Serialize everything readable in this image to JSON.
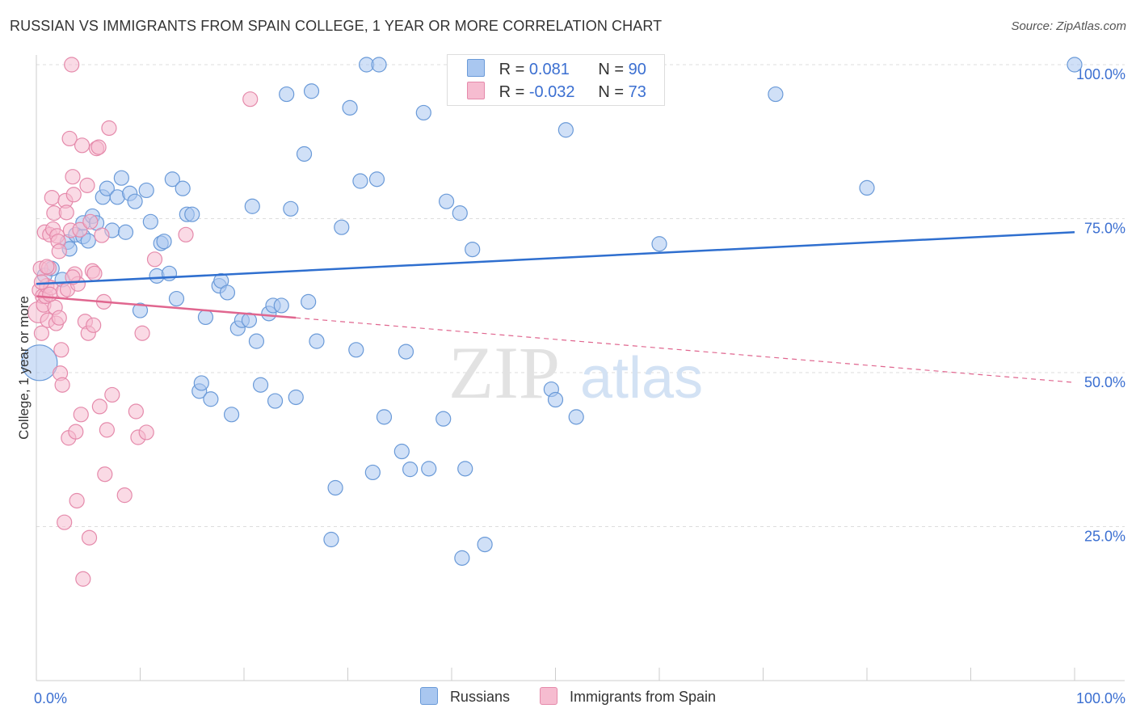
{
  "header": {
    "title": "RUSSIAN VS IMMIGRANTS FROM SPAIN COLLEGE, 1 YEAR OR MORE CORRELATION CHART",
    "source": "Source: ZipAtlas.com"
  },
  "legend_box": {
    "rows": [
      {
        "r_label": "R =",
        "r_value": "0.081",
        "n_label": "N =",
        "n_value": "90"
      },
      {
        "r_label": "R =",
        "r_value": "-0.032",
        "n_label": "N =",
        "n_value": "73"
      }
    ]
  },
  "watermark": {
    "part1": "ZIP",
    "part2": "atlas"
  },
  "colors": {
    "russians_fill": "#a9c7f0",
    "russians_stroke": "#6a9ad8",
    "russians_line": "#2f6fcf",
    "spain_fill": "#f6bcd0",
    "spain_stroke": "#e58aab",
    "spain_line": "#e0668f",
    "tick_text": "#3b6fd1",
    "grid": "#dddddd"
  },
  "chart_data": {
    "type": "scatter",
    "title": "RUSSIAN VS IMMIGRANTS FROM SPAIN COLLEGE, 1 YEAR OR MORE CORRELATION CHART",
    "xlabel": "",
    "ylabel": "College, 1 year or more",
    "xlim": [
      0,
      100
    ],
    "ylim": [
      0,
      100
    ],
    "x_tick_labels": [
      "0.0%",
      "100.0%"
    ],
    "y_ticks": [
      {
        "value": 25,
        "label": "25.0%"
      },
      {
        "value": 50,
        "label": "50.0%"
      },
      {
        "value": 75,
        "label": "75.0%"
      },
      {
        "value": 100,
        "label": "100.0%"
      }
    ],
    "grid": true,
    "legend_position": "bottom",
    "series": [
      {
        "name": "Russians",
        "trend": {
          "x": [
            0,
            100
          ],
          "y": [
            64.4,
            72.8
          ],
          "dashed_from": null
        },
        "points": [
          [
            0.3,
            51.6,
            3
          ],
          [
            0.8,
            65.8,
            1
          ],
          [
            1.5,
            66.9,
            1
          ],
          [
            2.5,
            65.1,
            1
          ],
          [
            3.0,
            71.2,
            1
          ],
          [
            3.2,
            70.1,
            1
          ],
          [
            3.8,
            72.4,
            1
          ],
          [
            4.5,
            72.1,
            1
          ],
          [
            4.5,
            74.3,
            1
          ],
          [
            5.0,
            71.4,
            1
          ],
          [
            5.4,
            75.4,
            1
          ],
          [
            5.8,
            74.3,
            1
          ],
          [
            6.4,
            78.5,
            1
          ],
          [
            6.8,
            79.9,
            1
          ],
          [
            7.3,
            73.1,
            1
          ],
          [
            7.8,
            78.5,
            1
          ],
          [
            8.2,
            81.6,
            1
          ],
          [
            8.6,
            72.8,
            1
          ],
          [
            9.0,
            79.1,
            1
          ],
          [
            9.5,
            77.8,
            1
          ],
          [
            10.0,
            60.1,
            1
          ],
          [
            10.6,
            79.6,
            1
          ],
          [
            11.0,
            74.5,
            1
          ],
          [
            11.6,
            65.7,
            1
          ],
          [
            12.0,
            71.0,
            1
          ],
          [
            12.3,
            71.3,
            1
          ],
          [
            12.8,
            66.1,
            1
          ],
          [
            13.1,
            81.4,
            1
          ],
          [
            13.5,
            62.0,
            1
          ],
          [
            14.1,
            79.9,
            1
          ],
          [
            14.5,
            75.7,
            1
          ],
          [
            15.0,
            75.7,
            1
          ],
          [
            15.7,
            47.0,
            1
          ],
          [
            15.9,
            48.3,
            1
          ],
          [
            16.3,
            59.0,
            1
          ],
          [
            16.8,
            45.7,
            1
          ],
          [
            17.6,
            64.1,
            1
          ],
          [
            17.8,
            64.9,
            1
          ],
          [
            18.4,
            63.0,
            1
          ],
          [
            18.8,
            43.2,
            1
          ],
          [
            19.4,
            57.2,
            1
          ],
          [
            19.8,
            58.5,
            1
          ],
          [
            20.5,
            58.5,
            1
          ],
          [
            20.8,
            77.0,
            1
          ],
          [
            21.2,
            55.1,
            1
          ],
          [
            21.6,
            48.0,
            1
          ],
          [
            22.4,
            59.6,
            1
          ],
          [
            22.8,
            60.9,
            1
          ],
          [
            23.0,
            45.4,
            1
          ],
          [
            23.6,
            60.9,
            1
          ],
          [
            24.1,
            95.2,
            1
          ],
          [
            24.5,
            76.6,
            1
          ],
          [
            25.0,
            46.0,
            1
          ],
          [
            25.8,
            85.5,
            1
          ],
          [
            26.2,
            61.5,
            1
          ],
          [
            26.5,
            95.7,
            1
          ],
          [
            27.0,
            55.1,
            1
          ],
          [
            28.4,
            22.9,
            1
          ],
          [
            28.8,
            31.3,
            1
          ],
          [
            29.4,
            73.6,
            1
          ],
          [
            30.2,
            93.0,
            1
          ],
          [
            30.8,
            53.7,
            1
          ],
          [
            31.2,
            81.1,
            1
          ],
          [
            31.8,
            100.0,
            1
          ],
          [
            32.4,
            33.8,
            1
          ],
          [
            32.8,
            81.4,
            1
          ],
          [
            33.0,
            100.0,
            1
          ],
          [
            33.5,
            42.8,
            1
          ],
          [
            35.2,
            37.2,
            1
          ],
          [
            35.6,
            53.4,
            1
          ],
          [
            36.0,
            34.3,
            1
          ],
          [
            37.3,
            92.2,
            1
          ],
          [
            37.8,
            34.4,
            1
          ],
          [
            39.2,
            42.5,
            1
          ],
          [
            39.5,
            77.8,
            1
          ],
          [
            40.8,
            75.9,
            1
          ],
          [
            41.0,
            19.9,
            1
          ],
          [
            41.3,
            34.4,
            1
          ],
          [
            42.0,
            70.0,
            1
          ],
          [
            43.2,
            22.1,
            1
          ],
          [
            45.8,
            99.7,
            1
          ],
          [
            48.0,
            99.7,
            1
          ],
          [
            49.6,
            47.3,
            1
          ],
          [
            50.0,
            45.6,
            1
          ],
          [
            51.0,
            89.4,
            1
          ],
          [
            52.0,
            42.8,
            1
          ],
          [
            60.0,
            70.9,
            1
          ],
          [
            71.2,
            95.2,
            1
          ],
          [
            80.0,
            80.0,
            1
          ],
          [
            100.0,
            100.0,
            1
          ]
        ]
      },
      {
        "name": "Immigrants from Spain",
        "trend": {
          "x": [
            0,
            100
          ],
          "y": [
            62.4,
            48.4
          ],
          "dashed_from": 25
        },
        "points": [
          [
            0.2,
            59.8,
            2
          ],
          [
            0.3,
            63.4,
            1
          ],
          [
            0.4,
            66.9,
            1
          ],
          [
            0.5,
            56.4,
            1
          ],
          [
            0.6,
            62.4,
            1
          ],
          [
            0.7,
            61.0,
            1
          ],
          [
            0.8,
            72.8,
            1
          ],
          [
            0.9,
            62.4,
            1
          ],
          [
            1.0,
            64.1,
            1
          ],
          [
            1.1,
            58.5,
            1
          ],
          [
            1.2,
            67.0,
            1
          ],
          [
            1.3,
            72.4,
            1
          ],
          [
            1.4,
            63.8,
            1
          ],
          [
            1.5,
            78.4,
            1
          ],
          [
            1.6,
            73.3,
            1
          ],
          [
            1.7,
            75.9,
            1
          ],
          [
            1.8,
            60.6,
            1
          ],
          [
            1.9,
            58.0,
            1
          ],
          [
            2.0,
            72.2,
            1
          ],
          [
            2.1,
            71.3,
            1
          ],
          [
            2.2,
            58.9,
            1
          ],
          [
            2.3,
            49.9,
            1
          ],
          [
            2.5,
            48.0,
            1
          ],
          [
            2.6,
            63.2,
            1
          ],
          [
            2.7,
            25.7,
            1
          ],
          [
            2.8,
            77.9,
            1
          ],
          [
            2.9,
            76.0,
            1
          ],
          [
            3.0,
            63.5,
            1
          ],
          [
            3.1,
            39.4,
            1
          ],
          [
            3.2,
            88.0,
            1
          ],
          [
            3.3,
            73.1,
            1
          ],
          [
            3.4,
            100.0,
            1
          ],
          [
            3.5,
            81.8,
            1
          ],
          [
            3.6,
            78.9,
            1
          ],
          [
            3.7,
            66.0,
            1
          ],
          [
            3.8,
            40.4,
            1
          ],
          [
            3.9,
            29.2,
            1
          ],
          [
            4.0,
            64.4,
            1
          ],
          [
            4.2,
            73.2,
            1
          ],
          [
            4.4,
            86.9,
            1
          ],
          [
            4.5,
            16.5,
            1
          ],
          [
            4.7,
            58.3,
            1
          ],
          [
            4.9,
            80.4,
            1
          ],
          [
            5.0,
            56.4,
            1
          ],
          [
            5.1,
            23.2,
            1
          ],
          [
            5.2,
            74.5,
            1
          ],
          [
            5.4,
            66.5,
            1
          ],
          [
            5.5,
            57.7,
            1
          ],
          [
            5.6,
            66.1,
            1
          ],
          [
            5.8,
            86.4,
            1
          ],
          [
            6.0,
            86.6,
            1
          ],
          [
            6.1,
            44.5,
            1
          ],
          [
            6.3,
            72.3,
            1
          ],
          [
            6.5,
            61.5,
            1
          ],
          [
            6.6,
            33.5,
            1
          ],
          [
            6.8,
            40.7,
            1
          ],
          [
            7.0,
            89.7,
            1
          ],
          [
            7.3,
            46.4,
            1
          ],
          [
            8.5,
            30.1,
            1
          ],
          [
            9.6,
            43.7,
            1
          ],
          [
            9.8,
            39.5,
            1
          ],
          [
            10.2,
            56.4,
            1
          ],
          [
            10.6,
            40.3,
            1
          ],
          [
            11.4,
            68.4,
            1
          ],
          [
            14.4,
            72.4,
            1
          ],
          [
            20.6,
            94.4,
            1
          ],
          [
            2.2,
            69.7,
            1
          ],
          [
            1.0,
            67.2,
            1
          ],
          [
            0.5,
            64.7,
            1
          ],
          [
            1.3,
            62.7,
            1
          ],
          [
            2.4,
            53.7,
            1
          ],
          [
            4.3,
            43.2,
            1
          ],
          [
            3.5,
            65.5,
            1
          ]
        ]
      }
    ]
  },
  "bottom_legend": {
    "items": [
      {
        "label": "Russians"
      },
      {
        "label": "Immigrants from Spain"
      }
    ]
  }
}
